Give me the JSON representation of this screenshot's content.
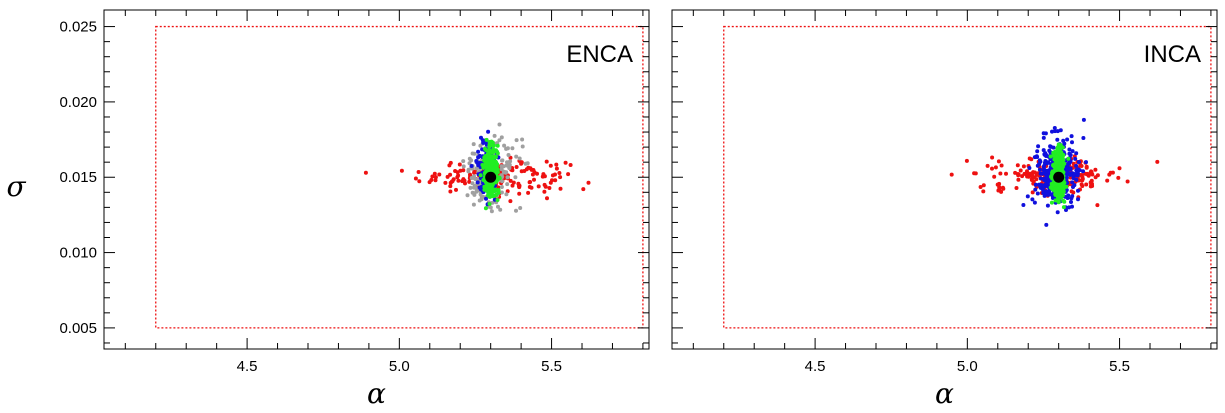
{
  "chart_data": {
    "type": "scatter",
    "xlabel": "α",
    "ylabel": "σ",
    "xlim": [
      4.03,
      5.82
    ],
    "ylim": [
      0.0036,
      0.0261
    ],
    "xticks": [
      4.5,
      5.0,
      5.5
    ],
    "xtick_labels": [
      "4.5",
      "5.0",
      "5.5"
    ],
    "yticks": [
      0.005,
      0.01,
      0.015,
      0.02,
      0.025
    ],
    "ytick_labels": [
      "0.005",
      "0.010",
      "0.015",
      "0.020",
      "0.025"
    ],
    "grid": false,
    "colors": {
      "red": "#ee1111",
      "gray": "#a0a0a0",
      "blue": "#1010dd",
      "green": "#22ee22",
      "black": "#000000"
    },
    "prior_box": {
      "x": [
        4.2,
        5.8
      ],
      "y": [
        0.005,
        0.025
      ]
    },
    "true_point": {
      "x": 5.3,
      "y": 0.015
    },
    "panels": [
      {
        "label": "ENCA",
        "clouds": [
          {
            "color": "red",
            "n": 170,
            "mean": [
              5.31,
              0.0151
            ],
            "sd": [
              0.12,
              0.00055
            ]
          },
          {
            "color": "gray",
            "n": 180,
            "mean": [
              5.3,
              0.0153
            ],
            "sd": [
              0.045,
              0.0011
            ]
          },
          {
            "color": "blue",
            "n": 160,
            "mean": [
              5.29,
              0.0155
            ],
            "sd": [
              0.017,
              0.00095
            ]
          },
          {
            "color": "green",
            "n": 320,
            "mean": [
              5.3,
              0.0153
            ],
            "sd": [
              0.011,
              0.00085
            ]
          }
        ]
      },
      {
        "label": "INCA",
        "clouds": [
          {
            "color": "red",
            "n": 190,
            "mean": [
              5.29,
              0.0151
            ],
            "sd": [
              0.11,
              0.00055
            ]
          },
          {
            "color": "blue",
            "n": 340,
            "mean": [
              5.29,
              0.0154
            ],
            "sd": [
              0.035,
              0.00105
            ]
          },
          {
            "color": "green",
            "n": 320,
            "mean": [
              5.3,
              0.0152
            ],
            "sd": [
              0.011,
              0.00085
            ]
          }
        ]
      }
    ]
  }
}
